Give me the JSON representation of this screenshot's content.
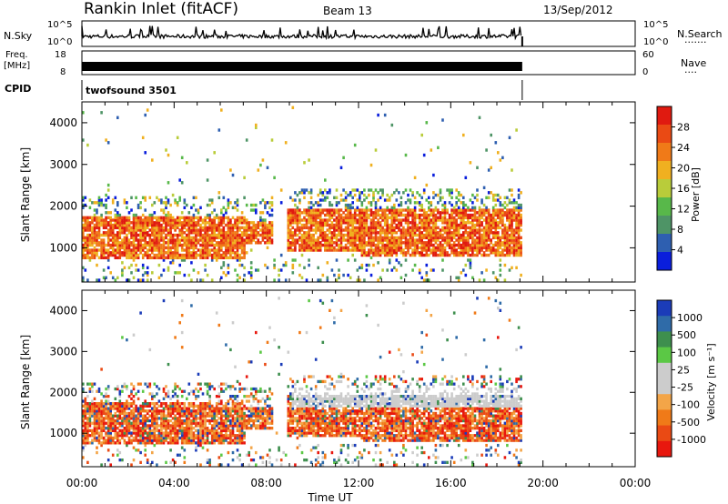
{
  "header": {
    "title": "Rankin Inlet (fitACF)",
    "beam": "Beam 13",
    "date": "13/Sep/2012"
  },
  "panels": {
    "nsky_label": "N.Sky",
    "nsearch_label": "N.Search",
    "nsearch_dots": "·······",
    "nsky_ticks": [
      "10^5",
      "10^0"
    ],
    "nsearch_ticks": [
      "10^5",
      "10^0"
    ],
    "freq_label_top": "Freq.",
    "freq_label_bottom": "[MHz]",
    "freq_ticks": [
      "18",
      "8"
    ],
    "nave_label": "Nave",
    "nave_dots": "····",
    "nave_ticks": [
      "60",
      "0"
    ],
    "cpid_label": "CPID",
    "cpid_value": "twofsound 3501"
  },
  "colors": {
    "power": [
      "#0a1edc",
      "#2e5fb0",
      "#4e9466",
      "#58b84a",
      "#b9cc3a",
      "#f0b020",
      "#f07a18",
      "#ea4a14",
      "#e01a10"
    ],
    "velocity": [
      "#e8170e",
      "#ea4a14",
      "#f07a18",
      "#f3a548",
      "#cccccc",
      "#cccccc",
      "#5bc845",
      "#3e8f4e",
      "#2f6ba8",
      "#1b3cb8"
    ],
    "grey": "#c8c8c8"
  },
  "chart_data": [
    {
      "type": "heatmap",
      "name": "power",
      "xlabel": "",
      "ylabel": "Slant Range [km]",
      "xlim": [
        0,
        24
      ],
      "ylim": [
        180,
        4500
      ],
      "y_ticks": [
        "1000",
        "2000",
        "3000",
        "4000"
      ],
      "colorbar_label": "Power [dB]",
      "colorbar_ticks": [
        "4",
        "8",
        "12",
        "16",
        "20",
        "24",
        "28"
      ],
      "colorbar_range": [
        0,
        32
      ]
    },
    {
      "type": "heatmap",
      "name": "velocity",
      "xlabel": "Time UT",
      "ylabel": "Slant Range [km]",
      "xlim": [
        0,
        24
      ],
      "ylim": [
        180,
        4500
      ],
      "x_ticks": [
        "00:00",
        "04:00",
        "08:00",
        "12:00",
        "16:00",
        "20:00",
        "00:00"
      ],
      "y_ticks": [
        "1000",
        "2000",
        "3000",
        "4000"
      ],
      "colorbar_label": "Velocity [m s⁻¹]",
      "colorbar_ticks": [
        "1000",
        "500",
        "100",
        "25",
        "-25",
        "-100",
        "-500",
        "-1000"
      ]
    }
  ]
}
